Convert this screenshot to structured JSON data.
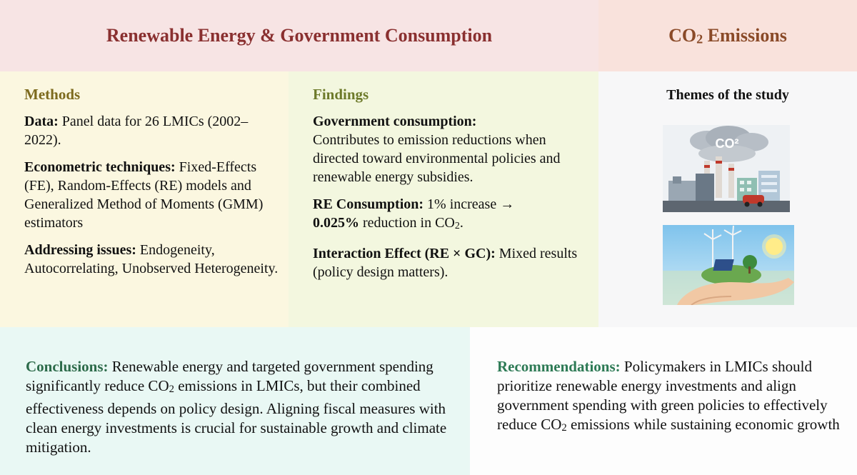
{
  "header": {
    "left_title": "Renewable Energy & Government Consumption",
    "right_title_prefix": "CO",
    "right_title_sub": "2",
    "right_title_suffix": " Emissions"
  },
  "methods": {
    "heading": "Methods",
    "data_label": "Data:",
    "data_text": " Panel data for 26 LMICs (2002–2022).",
    "tech_label": "Econometric techniques:",
    "tech_text": " Fixed-Effects (FE), Random-Effects (RE) models and Generalized Method of Moments (GMM) estimators",
    "issues_label": "Addressing issues:",
    "issues_text": " Endogeneity, Autocorrelating, Unobserved Heterogeneity."
  },
  "findings": {
    "heading": "Findings",
    "gov_label": "Government consumption:",
    "gov_text": "Contributes to emission reductions when directed toward environmental policies and renewable energy subsidies.",
    "re_label": "RE Consumption:",
    "re_text1": " 1% increase →",
    "re_bold": "0.025%",
    "re_text2": " reduction in CO",
    "re_sub": "2",
    "re_text3": ".",
    "inter_label": "Interaction Effect (RE × GC):",
    "inter_text": " Mixed results (policy design matters)."
  },
  "themes": {
    "title": "Themes of the study",
    "cloud_text": "CO²",
    "icon1": "factory-pollution-icon",
    "icon2": "hand-holding-earth-icon"
  },
  "conclusions": {
    "label": "Conclusions:",
    "text1": " Renewable energy and targeted government spending significantly reduce CO",
    "sub": "2",
    "text2": " emissions in LMICs, but their combined effectiveness depends on policy design. Aligning fiscal measures with clean energy investments is crucial for sustainable growth and climate mitigation."
  },
  "recommendations": {
    "label": "Recommendations:",
    "text1": " Policymakers in LMICs should prioritize renewable energy investments and align government spending with green policies to effectively reduce CO",
    "sub": "2",
    "text2": " emissions while sustaining economic growth"
  }
}
